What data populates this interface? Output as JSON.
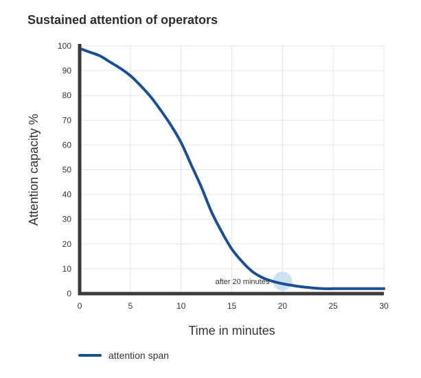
{
  "chart_data": {
    "type": "line",
    "title": "Sustained attention of operators",
    "xlabel": "Time in minutes",
    "ylabel": "Attention capacity %",
    "xlim": [
      0,
      30
    ],
    "ylim": [
      0,
      100
    ],
    "xticks": [
      0,
      5,
      10,
      15,
      20,
      25,
      30
    ],
    "yticks": [
      0,
      10,
      20,
      30,
      40,
      50,
      60,
      70,
      80,
      90,
      100
    ],
    "grid": true,
    "legend": "bottom-left",
    "series": [
      {
        "name": "attention span",
        "color": "#1a4f93",
        "x": [
          0,
          1,
          2,
          3,
          4,
          5,
          6,
          7,
          8,
          9,
          10,
          11,
          12,
          13,
          14,
          15,
          16,
          17,
          18,
          19,
          20,
          21,
          22,
          23,
          24,
          25,
          26,
          27,
          28,
          29,
          30
        ],
        "y": [
          99,
          97.5,
          96,
          93.5,
          91,
          88,
          84,
          79.5,
          74,
          68,
          61,
          52,
          43,
          33,
          25,
          18,
          13,
          9,
          6.5,
          5,
          4,
          3.3,
          2.7,
          2.3,
          2,
          2,
          2,
          2,
          2,
          2,
          2
        ]
      }
    ],
    "annotations": [
      {
        "text": "after 20 minutes",
        "x": 20,
        "y": 5,
        "color": "#c5dcf0"
      }
    ]
  }
}
